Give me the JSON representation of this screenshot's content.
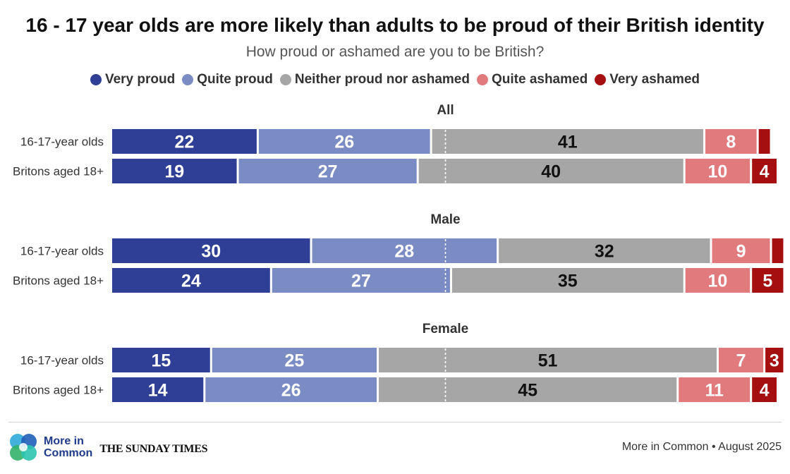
{
  "header": {
    "title": "16 - 17 year olds are more likely than adults to be proud of their British identity",
    "subtitle": "How proud or ashamed are you to be British?"
  },
  "legend": [
    {
      "label": "Very proud",
      "color": "#2e3f95"
    },
    {
      "label": "Quite proud",
      "color": "#7b8cc4"
    },
    {
      "label": "Neither proud nor ashamed",
      "color": "#a6a6a6"
    },
    {
      "label": "Quite ashamed",
      "color": "#e17a7c"
    },
    {
      "label": "Very ashamed",
      "color": "#a50f0f"
    }
  ],
  "chart_data": {
    "type": "stacked-bar-horizontal",
    "title": "16 - 17 year olds are more likely than adults to be proud of their British identity",
    "subtitle": "How proud or ashamed are you to be British?",
    "series": [
      "Very proud",
      "Quite proud",
      "Neither proud nor ashamed",
      "Quite ashamed",
      "Very ashamed"
    ],
    "colors": [
      "#2e3f95",
      "#7b8cc4",
      "#a6a6a6",
      "#e17a7c",
      "#a50f0f"
    ],
    "label_colors": [
      "#ffffff",
      "#ffffff",
      "#111111",
      "#ffffff",
      "#ffffff"
    ],
    "xlim": [
      0,
      100
    ],
    "midline": 50,
    "groups": [
      {
        "name": "All",
        "rows": [
          {
            "label": "16-17-year olds",
            "values": [
              22,
              26,
              41,
              8,
              2
            ],
            "labels": [
              "22",
              "26",
              "41",
              "8",
              ""
            ]
          },
          {
            "label": "Britons aged 18+",
            "values": [
              19,
              27,
              40,
              10,
              4
            ],
            "labels": [
              "19",
              "27",
              "40",
              "10",
              "4"
            ]
          }
        ]
      },
      {
        "name": "Male",
        "rows": [
          {
            "label": "16-17-year olds",
            "values": [
              30,
              28,
              32,
              9,
              2
            ],
            "labels": [
              "30",
              "28",
              "32",
              "9",
              ""
            ]
          },
          {
            "label": "Britons aged 18+",
            "values": [
              24,
              27,
              35,
              10,
              5
            ],
            "labels": [
              "24",
              "27",
              "35",
              "10",
              "5"
            ]
          }
        ]
      },
      {
        "name": "Female",
        "rows": [
          {
            "label": "16-17-year olds",
            "values": [
              15,
              25,
              51,
              7,
              3
            ],
            "labels": [
              "15",
              "25",
              "51",
              "7",
              "3"
            ]
          },
          {
            "label": "Britons aged 18+",
            "values": [
              14,
              26,
              45,
              11,
              4
            ],
            "labels": [
              "14",
              "26",
              "45",
              "11",
              "4"
            ]
          }
        ]
      }
    ]
  },
  "footer": {
    "logo_line1": "More in",
    "logo_line2": "Common",
    "partner": "THE SUNDAY TIMES",
    "source": "More in Common • August 2025"
  }
}
